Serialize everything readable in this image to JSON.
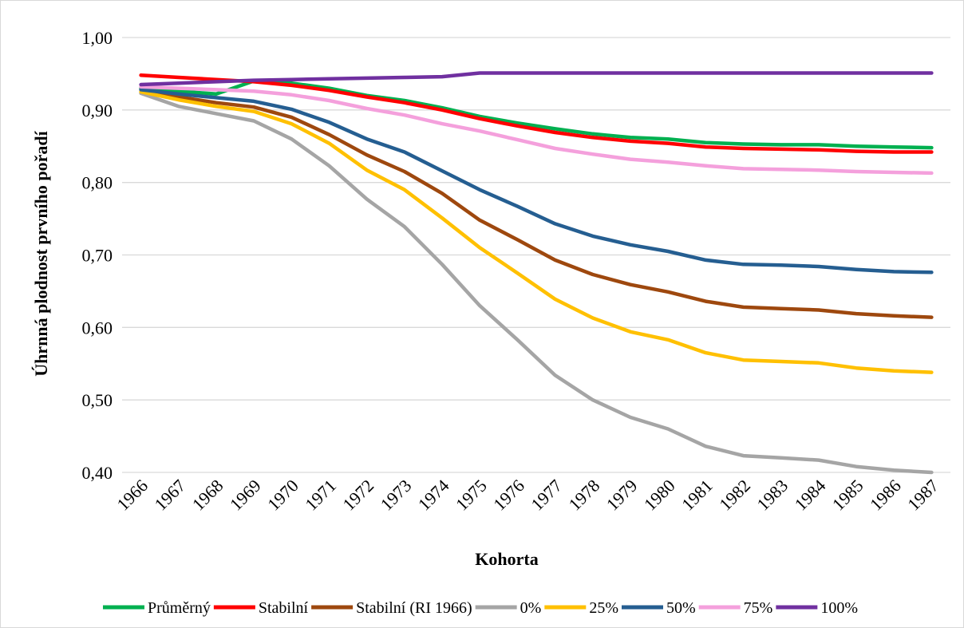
{
  "chart_data": {
    "type": "line",
    "xlabel": "Kohorta",
    "ylabel": "Úhrnná plodnost prvního pořadí",
    "ylim": [
      0.4,
      1.0
    ],
    "yticks": [
      "0,40",
      "0,50",
      "0,60",
      "0,70",
      "0,80",
      "0,90",
      "1,00"
    ],
    "grid": true,
    "legend_position": "bottom",
    "x": [
      "1966",
      "1967",
      "1968",
      "1969",
      "1970",
      "1971",
      "1972",
      "1973",
      "1974",
      "1975",
      "1976",
      "1977",
      "1978",
      "1979",
      "1980",
      "1981",
      "1982",
      "1983",
      "1984",
      "1985",
      "1986",
      "1987"
    ],
    "series": [
      {
        "name": "Průměrný",
        "color": "#00b050",
        "values": [
          0.93,
          0.926,
          0.922,
          0.94,
          0.937,
          0.93,
          0.92,
          0.913,
          0.903,
          0.891,
          0.882,
          0.874,
          0.867,
          0.862,
          0.86,
          0.855,
          0.853,
          0.852,
          0.852,
          0.85,
          0.849,
          0.848
        ]
      },
      {
        "name": "Stabilní",
        "color": "#ff0000",
        "values": [
          0.948,
          0.945,
          0.942,
          0.939,
          0.934,
          0.927,
          0.918,
          0.91,
          0.9,
          0.888,
          0.878,
          0.869,
          0.862,
          0.857,
          0.854,
          0.849,
          0.847,
          0.846,
          0.845,
          0.843,
          0.842,
          0.842
        ]
      },
      {
        "name": "Stabilní (RI 1966)",
        "color": "#9e480e",
        "values": [
          0.928,
          0.918,
          0.91,
          0.904,
          0.89,
          0.866,
          0.838,
          0.815,
          0.785,
          0.748,
          0.721,
          0.693,
          0.673,
          0.659,
          0.649,
          0.636,
          0.628,
          0.626,
          0.624,
          0.619,
          0.616,
          0.614
        ]
      },
      {
        "name": "0%",
        "color": "#a5a5a5",
        "values": [
          0.923,
          0.905,
          0.895,
          0.885,
          0.86,
          0.823,
          0.777,
          0.739,
          0.687,
          0.63,
          0.583,
          0.534,
          0.5,
          0.476,
          0.46,
          0.436,
          0.423,
          0.42,
          0.417,
          0.408,
          0.403,
          0.4
        ]
      },
      {
        "name": "25%",
        "color": "#ffc000",
        "values": [
          0.925,
          0.914,
          0.905,
          0.898,
          0.881,
          0.854,
          0.817,
          0.79,
          0.751,
          0.71,
          0.675,
          0.639,
          0.613,
          0.594,
          0.583,
          0.565,
          0.555,
          0.553,
          0.551,
          0.544,
          0.54,
          0.538
        ]
      },
      {
        "name": "50%",
        "color": "#255e91",
        "values": [
          0.928,
          0.922,
          0.917,
          0.912,
          0.901,
          0.883,
          0.86,
          0.842,
          0.816,
          0.79,
          0.767,
          0.743,
          0.726,
          0.714,
          0.705,
          0.693,
          0.687,
          0.686,
          0.684,
          0.68,
          0.677,
          0.676
        ]
      },
      {
        "name": "75%",
        "color": "#f4a0dc",
        "values": [
          0.932,
          0.93,
          0.928,
          0.926,
          0.921,
          0.913,
          0.902,
          0.893,
          0.881,
          0.871,
          0.859,
          0.847,
          0.839,
          0.832,
          0.828,
          0.823,
          0.819,
          0.818,
          0.817,
          0.815,
          0.814,
          0.813
        ]
      },
      {
        "name": "100%",
        "color": "#7030a0",
        "values": [
          0.935,
          0.937,
          0.939,
          0.941,
          0.942,
          0.943,
          0.944,
          0.945,
          0.946,
          0.951,
          0.951,
          0.951,
          0.951,
          0.951,
          0.951,
          0.951,
          0.951,
          0.951,
          0.951,
          0.951,
          0.951,
          0.951
        ]
      }
    ]
  }
}
